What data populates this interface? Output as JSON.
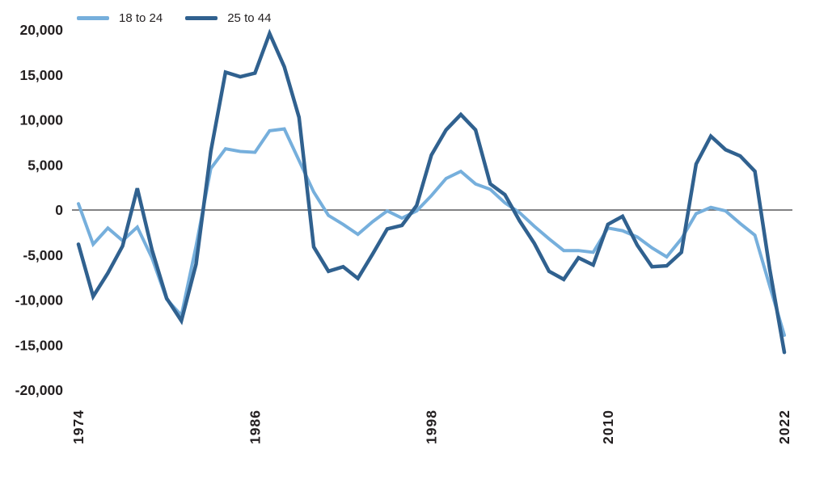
{
  "chart_data": {
    "type": "line",
    "title": "",
    "xlabel": "",
    "ylabel": "",
    "grid": false,
    "zero_line": true,
    "legend_position": "top-left",
    "ylim": [
      -20000,
      20000
    ],
    "y_ticks": {
      "values": [
        20000,
        15000,
        10000,
        5000,
        0,
        -5000,
        -10000,
        -15000,
        -20000
      ],
      "labels": [
        "20,000",
        "15,000",
        "10,000",
        "5,000",
        "0",
        "-5,000",
        "-10,000",
        "-15,000",
        "-20,000"
      ]
    },
    "x_ticks": [
      1974,
      1986,
      1998,
      2010,
      2022
    ],
    "x": [
      1974,
      1975,
      1976,
      1977,
      1978,
      1979,
      1980,
      1981,
      1982,
      1983,
      1984,
      1985,
      1986,
      1987,
      1988,
      1989,
      1990,
      1991,
      1992,
      1993,
      1994,
      1995,
      1996,
      1997,
      1998,
      1999,
      2000,
      2001,
      2002,
      2003,
      2004,
      2005,
      2006,
      2007,
      2008,
      2009,
      2010,
      2011,
      2012,
      2013,
      2014,
      2015,
      2016,
      2017,
      2018,
      2019,
      2020,
      2021,
      2022
    ],
    "series": [
      {
        "name": "18 to 24",
        "color": "#76afdc",
        "values": [
          700,
          -3800,
          -2000,
          -3400,
          -1900,
          -5300,
          -9900,
          -11700,
          -4000,
          4600,
          6800,
          6500,
          6400,
          8800,
          9000,
          5500,
          2000,
          -600,
          -1600,
          -2700,
          -1300,
          -100,
          -900,
          -100,
          1600,
          3500,
          4300,
          2900,
          2300,
          800,
          -300,
          -1800,
          -3200,
          -4500,
          -4500,
          -4700,
          -2000,
          -2300,
          -3000,
          -4200,
          -5200,
          -3200,
          -400,
          300,
          -100,
          -1500,
          -2800,
          -8400,
          -13900
        ]
      },
      {
        "name": "25 to 44",
        "color": "#30618f",
        "values": [
          -3800,
          -9600,
          -7000,
          -4000,
          2400,
          -4400,
          -9800,
          -12300,
          -6000,
          6500,
          15300,
          14800,
          15200,
          19600,
          15900,
          10300,
          -4100,
          -6800,
          -6300,
          -7600,
          -4900,
          -2100,
          -1700,
          500,
          6100,
          8900,
          10600,
          8900,
          2900,
          1700,
          -1200,
          -3700,
          -6800,
          -7700,
          -5300,
          -6100,
          -1600,
          -700,
          -3900,
          -6300,
          -6200,
          -4700,
          5100,
          8200,
          6700,
          6000,
          4300,
          -6500,
          -15800
        ]
      }
    ],
    "axis_color": "#58595b",
    "label_color": "#231f20"
  }
}
